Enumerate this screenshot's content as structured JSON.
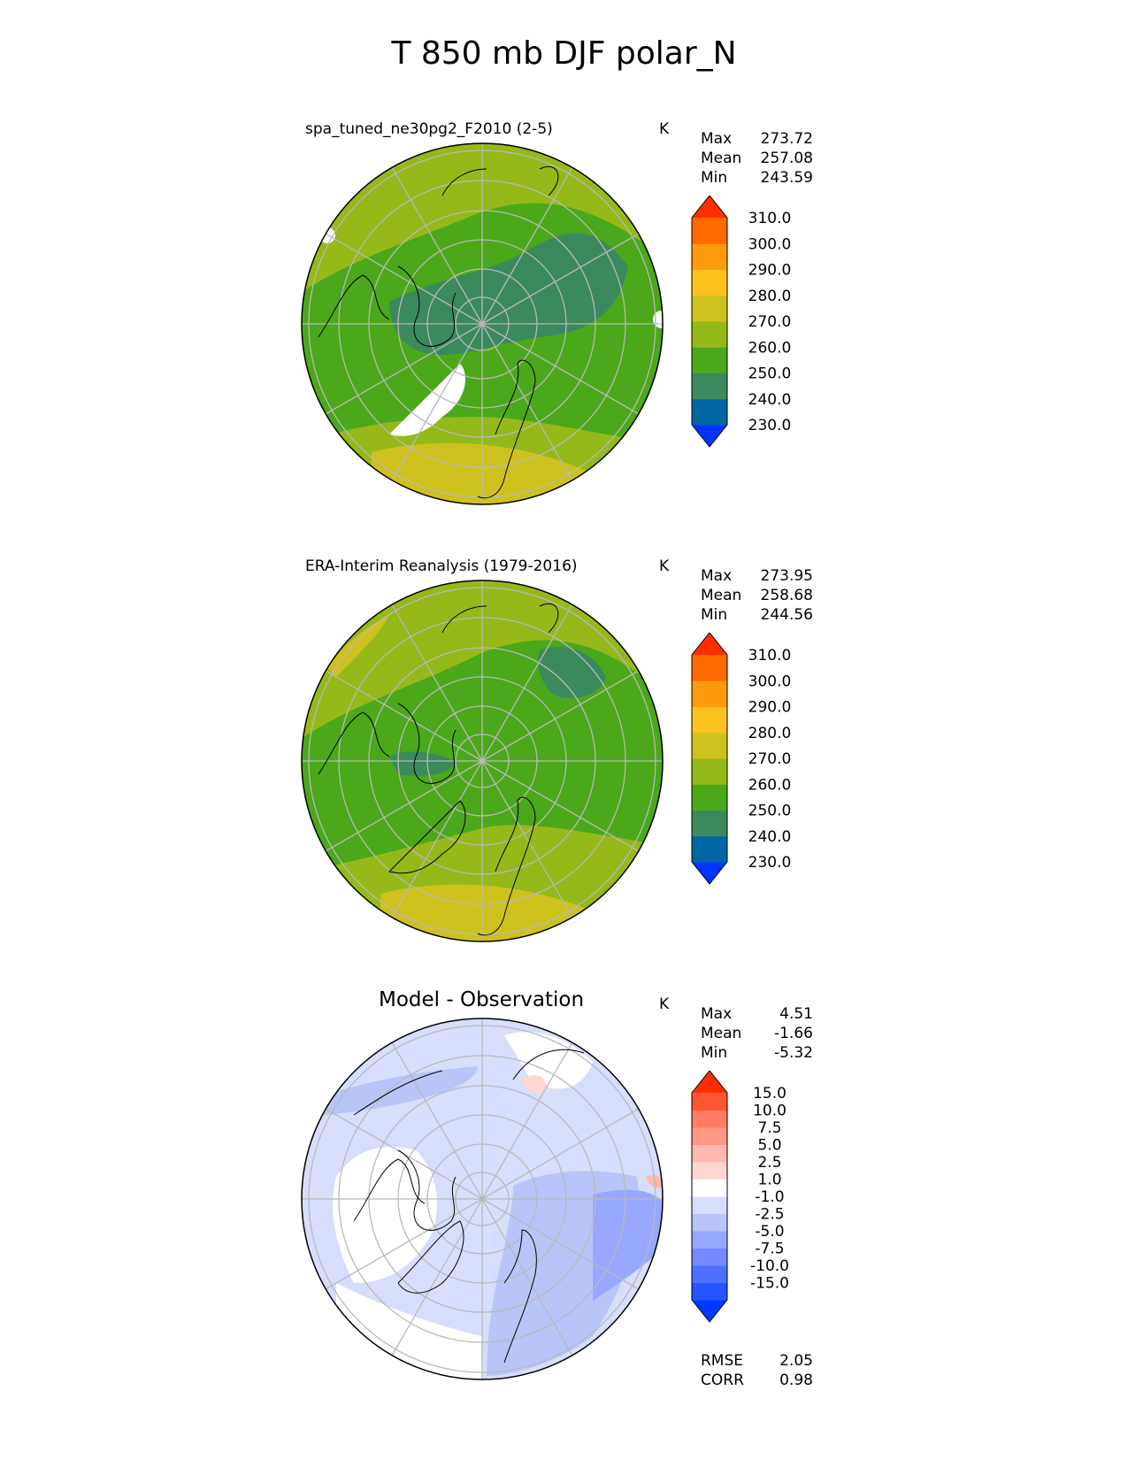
{
  "figure": {
    "title": "T 850 mb DJF polar_N"
  },
  "colors": {
    "levels_abs": [
      "#0033ff",
      "#0067a4",
      "#3a8a5e",
      "#4aa81a",
      "#94b919",
      "#cdc21d",
      "#fbc220",
      "#ff9a0e",
      "#ff6a00",
      "#ff2d00"
    ],
    "levels_diff": [
      "#0039ff",
      "#2654ff",
      "#4d70ff",
      "#7289ff",
      "#97a7ff",
      "#b9c5f8",
      "#d6defb",
      "#ffffff",
      "#fdd8d3",
      "#ffb9ae",
      "#ff9986",
      "#ff7b64",
      "#ff5533",
      "#ff2d00"
    ]
  },
  "chart_data": [
    {
      "type": "polar-map",
      "title": "spa_tuned_ne30pg2_F2010 (2-5)",
      "units": "K",
      "stats": {
        "Max": "273.72",
        "Mean": "257.08",
        "Min": "243.59"
      },
      "colorbar_ticks": [
        "310.0",
        "300.0",
        "290.0",
        "280.0",
        "270.0",
        "260.0",
        "250.0",
        "240.0",
        "230.0"
      ]
    },
    {
      "type": "polar-map",
      "title": "ERA-Interim Reanalysis (1979-2016)",
      "units": "K",
      "stats": {
        "Max": "273.95",
        "Mean": "258.68",
        "Min": "244.56"
      },
      "colorbar_ticks": [
        "310.0",
        "300.0",
        "290.0",
        "280.0",
        "270.0",
        "260.0",
        "250.0",
        "240.0",
        "230.0"
      ]
    },
    {
      "type": "polar-map",
      "title": "Model - Observation",
      "units": "K",
      "stats": {
        "Max": "4.51",
        "Mean": "-1.66",
        "Min": "-5.32"
      },
      "colorbar_ticks": [
        "15.0",
        "10.0",
        "7.5",
        "5.0",
        "2.5",
        "1.0",
        "-1.0",
        "-2.5",
        "-5.0",
        "-7.5",
        "-10.0",
        "-15.0"
      ],
      "metrics": {
        "RMSE": "2.05",
        "CORR": "0.98"
      }
    }
  ]
}
